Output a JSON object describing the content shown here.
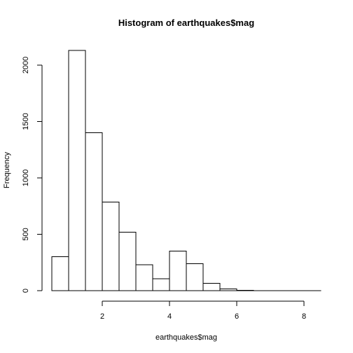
{
  "chart_data": {
    "type": "bar",
    "title": "Histogram of earthquakes$mag",
    "xlabel": "earthquakes$mag",
    "ylabel": "Frequency",
    "bin_edges": [
      0.5,
      1.0,
      1.5,
      2.0,
      2.5,
      3.0,
      3.5,
      4.0,
      4.5,
      5.0,
      5.5,
      6.0,
      6.5,
      7.0,
      7.5,
      8.0,
      8.5
    ],
    "values": [
      300,
      2130,
      1400,
      785,
      520,
      230,
      105,
      350,
      240,
      65,
      15,
      2,
      1,
      1,
      1,
      1
    ],
    "xlim": [
      0.5,
      8.5
    ],
    "ylim": [
      0,
      2130
    ],
    "x_ticks": [
      2,
      4,
      6,
      8
    ],
    "x_tick_labels": [
      "2",
      "4",
      "6",
      "8"
    ],
    "y_ticks": [
      0,
      500,
      1000,
      1500,
      2000
    ],
    "y_tick_labels": [
      "0",
      "500",
      "1000",
      "1500",
      "2000"
    ],
    "grid": false,
    "bar_fill": "#ffffff",
    "bar_stroke": "#000000"
  }
}
